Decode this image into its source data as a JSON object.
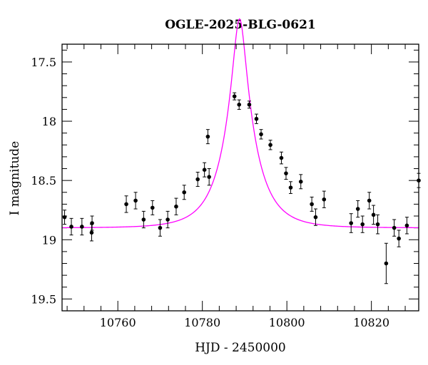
{
  "chart_data": {
    "type": "scatter",
    "title": "OGLE-2025-BLG-0621",
    "xlabel": "HJD - 2450000",
    "ylabel": "I magnitude",
    "xlim": [
      10746.8,
      10831.2
    ],
    "ylim": [
      19.6,
      17.35
    ],
    "y_inverted": true,
    "grid": false,
    "x_ticks": [
      10760,
      10780,
      10800,
      10820
    ],
    "x_tick_labels": [
      "10760",
      "10780",
      "10800",
      "10820"
    ],
    "y_ticks": [
      17.5,
      18,
      18.5,
      19,
      19.5
    ],
    "y_tick_labels": [
      "17.5",
      "18",
      "18.5",
      "19",
      "19.5"
    ],
    "colors": {
      "points": "#000000",
      "model": "#ff00ff"
    },
    "series": [
      {
        "type": "scatter_errorbar",
        "x": [
          10747.4,
          10749.0,
          10751.5,
          10753.8,
          10753.9,
          10762.0,
          10764.2,
          10766.1,
          10768.2,
          10770.0,
          10771.8,
          10773.8,
          10775.7,
          10778.9,
          10780.5,
          10781.3,
          10781.6,
          10787.6,
          10788.7,
          10791.1,
          10792.8,
          10793.9,
          10796.1,
          10798.7,
          10799.8,
          10800.9,
          10803.3,
          10805.9,
          10806.8,
          10808.8,
          10815.2,
          10816.8,
          10817.9,
          10819.5,
          10820.5,
          10821.5,
          10823.5,
          10825.4,
          10826.5,
          10828.4,
          10831.2
        ],
        "y": [
          18.81,
          18.89,
          18.89,
          18.94,
          18.86,
          18.7,
          18.67,
          18.83,
          18.73,
          18.9,
          18.83,
          18.72,
          18.6,
          18.49,
          18.41,
          18.13,
          18.47,
          17.79,
          17.86,
          17.86,
          17.98,
          18.11,
          18.2,
          18.31,
          18.44,
          18.56,
          18.51,
          18.7,
          18.81,
          18.66,
          18.86,
          18.74,
          18.87,
          18.67,
          18.79,
          18.87,
          19.2,
          18.9,
          18.99,
          18.88,
          18.5
        ],
        "yerr": [
          0.06,
          0.07,
          0.07,
          0.07,
          0.06,
          0.07,
          0.07,
          0.07,
          0.06,
          0.07,
          0.07,
          0.07,
          0.06,
          0.06,
          0.06,
          0.06,
          0.07,
          0.03,
          0.04,
          0.03,
          0.04,
          0.04,
          0.04,
          0.05,
          0.05,
          0.05,
          0.06,
          0.06,
          0.07,
          0.07,
          0.08,
          0.07,
          0.07,
          0.07,
          0.08,
          0.08,
          0.17,
          0.07,
          0.07,
          0.07,
          0.06
        ]
      },
      {
        "type": "model_curve",
        "model": "paczynski",
        "t0": 10788.8,
        "tE": 7.2,
        "u0": 0.2,
        "baseline_mag": 18.9
      }
    ]
  }
}
